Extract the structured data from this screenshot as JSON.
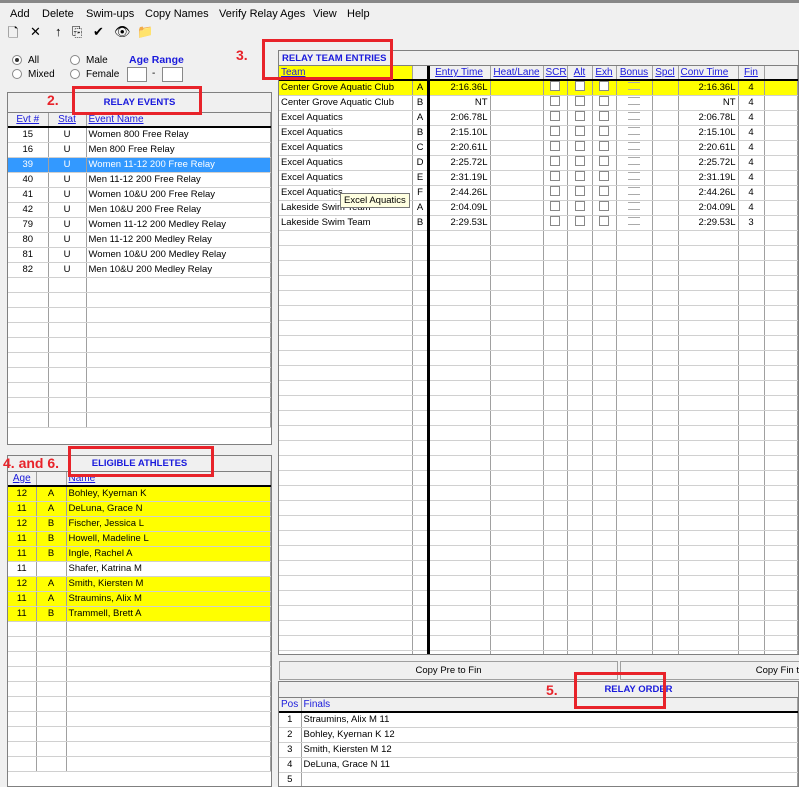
{
  "menu": [
    "Add",
    "Delete",
    "Swim-ups",
    "Copy Names",
    "Verify Relay Ages",
    "View",
    "Help"
  ],
  "toolbar": [
    {
      "icon": "new-page-icon",
      "glyph": "🗋"
    },
    {
      "icon": "delete-x-icon",
      "glyph": "✕"
    },
    {
      "icon": "up-arrow-icon",
      "glyph": "↑"
    },
    {
      "icon": "copy-icon",
      "glyph": "⎘"
    },
    {
      "icon": "checkmark-grid-icon",
      "glyph": "✔"
    },
    {
      "icon": "eye-icon",
      "glyph": "👁"
    },
    {
      "icon": "folder-icon",
      "glyph": "📁"
    }
  ],
  "filters": {
    "all": "All",
    "mixed": "Mixed",
    "male": "Male",
    "female": "Female",
    "age_range": "Age Range",
    "dash": "-",
    "age_min": "",
    "age_max": "",
    "selected": "All"
  },
  "annotations": {
    "events": "2.",
    "entries": "3.",
    "athletes": "4. and 6.",
    "order": "5."
  },
  "relay_events": {
    "title": "RELAY EVENTS",
    "columns": [
      "Evt #",
      "Stat",
      "Event Name"
    ],
    "rows": [
      [
        "15",
        "U",
        "Women 800 Free Relay"
      ],
      [
        "16",
        "U",
        "Men 800 Free Relay"
      ],
      [
        "39",
        "U",
        "Women 11-12 200 Free Relay"
      ],
      [
        "40",
        "U",
        "Men 11-12 200 Free Relay"
      ],
      [
        "41",
        "U",
        "Women 10&U 200 Free Relay"
      ],
      [
        "42",
        "U",
        "Men 10&U 200 Free Relay"
      ],
      [
        "79",
        "U",
        "Women 11-12 200 Medley Relay"
      ],
      [
        "80",
        "U",
        "Men 11-12 200 Medley Relay"
      ],
      [
        "81",
        "U",
        "Women 10&U 200 Medley Relay"
      ],
      [
        "82",
        "U",
        "Men 10&U 200 Medley Relay"
      ]
    ],
    "selected_index": 2
  },
  "eligible_athletes": {
    "title": "ELIGIBLE ATHLETES",
    "columns": [
      "Age",
      "",
      "Name"
    ],
    "rows": [
      [
        "12",
        "A",
        "Bohley, Kyernan K",
        true
      ],
      [
        "11",
        "A",
        "DeLuna, Grace N",
        true
      ],
      [
        "12",
        "B",
        "Fischer, Jessica L",
        true
      ],
      [
        "11",
        "B",
        "Howell, Madeline L",
        true
      ],
      [
        "11",
        "B",
        "Ingle, Rachel A",
        true
      ],
      [
        "11",
        "",
        "Shafer, Katrina M",
        false
      ],
      [
        "12",
        "A",
        "Smith, Kiersten M",
        true
      ],
      [
        "11",
        "A",
        "Straumins, Alix M",
        true
      ],
      [
        "11",
        "B",
        "Trammell, Brett A",
        true
      ]
    ]
  },
  "relay_entries": {
    "title": "RELAY TEAM ENTRIES",
    "columns": [
      "Team",
      "",
      "Entry Time",
      "Heat/Lane",
      "SCR",
      "Alt",
      "Exh",
      "Bonus",
      "Spcl",
      "Conv Time",
      "Fin"
    ],
    "rows": [
      [
        "Center Grove Aquatic Club",
        "A",
        "2:16.36L",
        "2:16.36L",
        "4"
      ],
      [
        "Center Grove Aquatic Club",
        "B",
        "NT",
        "NT",
        "4"
      ],
      [
        "Excel Aquatics",
        "A",
        "2:06.78L",
        "2:06.78L",
        "4"
      ],
      [
        "Excel Aquatics",
        "B",
        "2:15.10L",
        "2:15.10L",
        "4"
      ],
      [
        "Excel Aquatics",
        "C",
        "2:20.61L",
        "2:20.61L",
        "4"
      ],
      [
        "Excel Aquatics",
        "D",
        "2:25.72L",
        "2:25.72L",
        "4"
      ],
      [
        "Excel Aquatics",
        "E",
        "2:31.19L",
        "2:31.19L",
        "4"
      ],
      [
        "Excel Aquatics",
        "F",
        "2:44.26L",
        "2:44.26L",
        "4"
      ],
      [
        "Lakeside Swim Team",
        "A",
        "2:04.09L",
        "2:04.09L",
        "4"
      ],
      [
        "Lakeside Swim Team",
        "B",
        "2:29.53L",
        "2:29.53L",
        "3"
      ]
    ],
    "highlight_index": 0,
    "tooltip": "Excel Aquatics"
  },
  "buttons": {
    "copy_pre_to_fin": "Copy Pre to Fin",
    "copy_fin_to": "Copy Fin t"
  },
  "relay_order": {
    "title": "RELAY ORDER",
    "columns": [
      "Pos",
      "Finals"
    ],
    "rows": [
      [
        "1",
        "Straumins, Alix M 11"
      ],
      [
        "2",
        "Bohley, Kyernan K 12"
      ],
      [
        "3",
        "Smith, Kiersten M 12"
      ],
      [
        "4",
        "DeLuna, Grace N 11"
      ],
      [
        "5",
        ""
      ]
    ]
  },
  "colors": {
    "highlight": "#ffff00",
    "selection": "#3399ff",
    "header_text": "#1a1adc",
    "annotation": "#e8232a"
  }
}
